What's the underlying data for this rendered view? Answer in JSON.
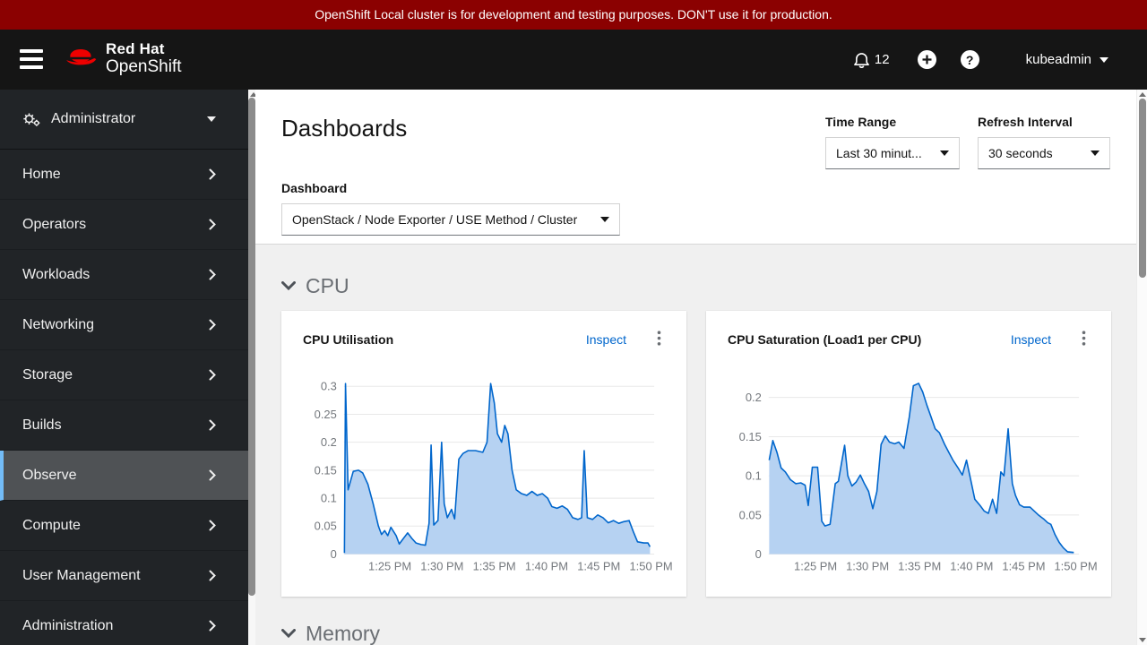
{
  "banner": {
    "text": "OpenShift Local cluster is for development and testing purposes. DON'T use it for production."
  },
  "masthead": {
    "brand_line1": "Red Hat",
    "brand_line2": "OpenShift",
    "notifications_count": "12",
    "username": "kubeadmin",
    "icons": [
      "hamburger-menu",
      "redhat-fedora-logo",
      "bell",
      "plus-circle",
      "help-circle",
      "caret-down"
    ]
  },
  "sidebar": {
    "perspective": {
      "label": "Administrator",
      "icon": "cogs"
    },
    "items": [
      {
        "label": "Home"
      },
      {
        "label": "Operators"
      },
      {
        "label": "Workloads"
      },
      {
        "label": "Networking"
      },
      {
        "label": "Storage"
      },
      {
        "label": "Builds"
      },
      {
        "label": "Observe",
        "selected": true
      },
      {
        "label": "Compute"
      },
      {
        "label": "User Management"
      },
      {
        "label": "Administration"
      }
    ]
  },
  "page": {
    "title": "Dashboards",
    "filters": {
      "time_range_label": "Time Range",
      "time_range_value": "Last 30 minut...",
      "refresh_label": "Refresh Interval",
      "refresh_value": "30 seconds",
      "dashboard_label": "Dashboard",
      "dashboard_value": "OpenStack / Node Exporter / USE Method / Cluster"
    },
    "sections": [
      {
        "title": "CPU"
      },
      {
        "title": "Memory"
      }
    ]
  },
  "cards": [
    {
      "title": "CPU Utilisation",
      "action": "Inspect"
    },
    {
      "title": "CPU Saturation (Load1 per CPU)",
      "action": "Inspect"
    }
  ],
  "colors": {
    "banner_red": "#8b0101",
    "masthead_black": "#151515",
    "sidebar_bg": "#212427",
    "nav_selected_bg": "#4f5255",
    "nav_selected_border": "#73bcf7",
    "link_blue": "#0066cc",
    "body_gray": "#f0f0f0",
    "chart_stroke": "#0066cc",
    "chart_fill": "#b6d2f2",
    "gridline": "#e8e8e8"
  },
  "chart_data": [
    {
      "type": "area",
      "title": "CPU Utilisation",
      "legend": "none",
      "grid": "horizontal",
      "x_axis": {
        "unit": "time of day (minutes after 1:00 PM)",
        "tick_labels": [
          "1:25 PM",
          "1:30 PM",
          "1:35 PM",
          "1:40 PM",
          "1:45 PM",
          "1:50 PM"
        ],
        "tick_minutes": [
          25,
          30,
          35,
          40,
          45,
          50
        ],
        "range_minutes": [
          20.6,
          50.3
        ]
      },
      "y_axis": {
        "tick_values": [
          0,
          0.05,
          0.1,
          0.15,
          0.2,
          0.25,
          0.3
        ],
        "plot_max": 0.322
      },
      "series": [
        {
          "name": "cpu-utilisation",
          "points": [
            [
              20.65,
              0.002
            ],
            [
              20.75,
              0.305
            ],
            [
              21.0,
              0.115
            ],
            [
              21.5,
              0.148
            ],
            [
              22.0,
              0.15
            ],
            [
              22.4,
              0.145
            ],
            [
              22.9,
              0.125
            ],
            [
              23.4,
              0.09
            ],
            [
              23.9,
              0.05
            ],
            [
              24.2,
              0.035
            ],
            [
              24.5,
              0.042
            ],
            [
              24.8,
              0.033
            ],
            [
              25.1,
              0.048
            ],
            [
              25.6,
              0.033
            ],
            [
              25.9,
              0.018
            ],
            [
              26.3,
              0.028
            ],
            [
              26.7,
              0.038
            ],
            [
              27.1,
              0.028
            ],
            [
              27.5,
              0.02
            ],
            [
              28.0,
              0.017
            ],
            [
              28.4,
              0.016
            ],
            [
              28.75,
              0.055
            ],
            [
              28.95,
              0.195
            ],
            [
              29.2,
              0.052
            ],
            [
              29.6,
              0.06
            ],
            [
              29.95,
              0.2
            ],
            [
              30.2,
              0.09
            ],
            [
              30.5,
              0.065
            ],
            [
              30.9,
              0.08
            ],
            [
              31.2,
              0.063
            ],
            [
              31.6,
              0.17
            ],
            [
              32.0,
              0.18
            ],
            [
              32.5,
              0.185
            ],
            [
              33.2,
              0.185
            ],
            [
              33.9,
              0.182
            ],
            [
              34.3,
              0.2
            ],
            [
              34.65,
              0.305
            ],
            [
              35.0,
              0.27
            ],
            [
              35.3,
              0.215
            ],
            [
              35.7,
              0.2
            ],
            [
              36.0,
              0.23
            ],
            [
              36.3,
              0.215
            ],
            [
              36.7,
              0.15
            ],
            [
              37.1,
              0.115
            ],
            [
              37.6,
              0.108
            ],
            [
              38.1,
              0.105
            ],
            [
              38.6,
              0.112
            ],
            [
              39.1,
              0.105
            ],
            [
              39.6,
              0.108
            ],
            [
              40.1,
              0.1
            ],
            [
              40.5,
              0.085
            ],
            [
              41.0,
              0.082
            ],
            [
              41.5,
              0.086
            ],
            [
              42.0,
              0.08
            ],
            [
              42.5,
              0.065
            ],
            [
              43.0,
              0.062
            ],
            [
              43.35,
              0.065
            ],
            [
              43.6,
              0.185
            ],
            [
              43.9,
              0.065
            ],
            [
              44.4,
              0.062
            ],
            [
              44.9,
              0.07
            ],
            [
              45.4,
              0.065
            ],
            [
              45.9,
              0.056
            ],
            [
              46.4,
              0.06
            ],
            [
              46.9,
              0.055
            ],
            [
              47.4,
              0.058
            ],
            [
              47.9,
              0.06
            ],
            [
              48.3,
              0.04
            ],
            [
              48.7,
              0.022
            ],
            [
              49.3,
              0.02
            ],
            [
              49.7,
              0.02
            ],
            [
              49.9,
              0.013
            ]
          ]
        }
      ]
    },
    {
      "type": "area",
      "title": "CPU Saturation (Load1 per CPU)",
      "legend": "none",
      "grid": "horizontal",
      "x_axis": {
        "unit": "time of day (minutes after 1:00 PM)",
        "tick_labels": [
          "1:25 PM",
          "1:30 PM",
          "1:35 PM",
          "1:40 PM",
          "1:45 PM",
          "1:50 PM"
        ],
        "tick_minutes": [
          25,
          30,
          35,
          40,
          45,
          50
        ],
        "range_minutes": [
          20.5,
          50.3
        ]
      },
      "y_axis": {
        "tick_values": [
          0,
          0.05,
          0.1,
          0.15,
          0.2
        ],
        "plot_max": 0.23
      },
      "series": [
        {
          "name": "cpu-saturation-load1-per-cpu",
          "points": [
            [
              20.55,
              0.12
            ],
            [
              20.9,
              0.145
            ],
            [
              21.3,
              0.13
            ],
            [
              21.7,
              0.11
            ],
            [
              22.1,
              0.105
            ],
            [
              22.6,
              0.095
            ],
            [
              23.1,
              0.09
            ],
            [
              23.6,
              0.091
            ],
            [
              24.0,
              0.088
            ],
            [
              24.3,
              0.062
            ],
            [
              24.7,
              0.111
            ],
            [
              25.2,
              0.111
            ],
            [
              25.6,
              0.042
            ],
            [
              25.9,
              0.036
            ],
            [
              26.4,
              0.038
            ],
            [
              26.9,
              0.09
            ],
            [
              27.2,
              0.093
            ],
            [
              27.8,
              0.139
            ],
            [
              28.1,
              0.1
            ],
            [
              28.5,
              0.087
            ],
            [
              28.9,
              0.092
            ],
            [
              29.3,
              0.101
            ],
            [
              29.7,
              0.09
            ],
            [
              30.1,
              0.08
            ],
            [
              30.5,
              0.058
            ],
            [
              30.9,
              0.08
            ],
            [
              31.3,
              0.14
            ],
            [
              31.7,
              0.151
            ],
            [
              32.1,
              0.143
            ],
            [
              32.6,
              0.141
            ],
            [
              33.0,
              0.143
            ],
            [
              33.5,
              0.135
            ],
            [
              34.0,
              0.175
            ],
            [
              34.4,
              0.215
            ],
            [
              34.9,
              0.218
            ],
            [
              35.3,
              0.207
            ],
            [
              35.7,
              0.19
            ],
            [
              36.1,
              0.175
            ],
            [
              36.5,
              0.16
            ],
            [
              36.9,
              0.155
            ],
            [
              37.4,
              0.14
            ],
            [
              37.8,
              0.13
            ],
            [
              38.2,
              0.12
            ],
            [
              38.7,
              0.11
            ],
            [
              39.1,
              0.101
            ],
            [
              39.5,
              0.12
            ],
            [
              39.9,
              0.095
            ],
            [
              40.3,
              0.07
            ],
            [
              40.8,
              0.062
            ],
            [
              41.2,
              0.055
            ],
            [
              41.6,
              0.052
            ],
            [
              42.0,
              0.07
            ],
            [
              42.4,
              0.052
            ],
            [
              42.8,
              0.105
            ],
            [
              43.1,
              0.1
            ],
            [
              43.5,
              0.16
            ],
            [
              43.9,
              0.09
            ],
            [
              44.2,
              0.075
            ],
            [
              44.6,
              0.063
            ],
            [
              45.0,
              0.06
            ],
            [
              45.6,
              0.06
            ],
            [
              46.0,
              0.055
            ],
            [
              46.4,
              0.05
            ],
            [
              46.9,
              0.045
            ],
            [
              47.3,
              0.04
            ],
            [
              47.6,
              0.038
            ],
            [
              48.0,
              0.025
            ],
            [
              48.4,
              0.015
            ],
            [
              48.8,
              0.008
            ],
            [
              49.2,
              0.003
            ],
            [
              49.8,
              0.002
            ]
          ]
        }
      ]
    }
  ]
}
